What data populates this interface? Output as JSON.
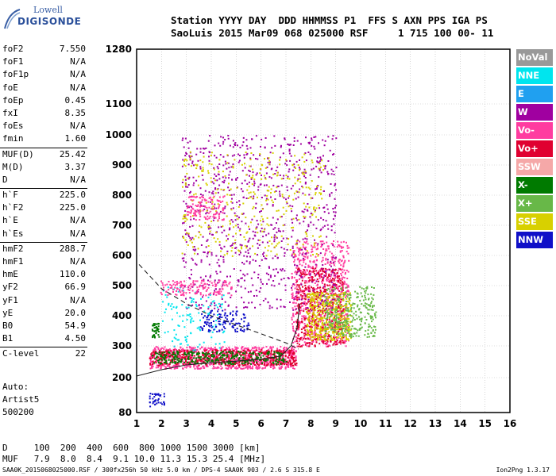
{
  "logo": {
    "line1": "Lowell",
    "line2": "DIGISONDE"
  },
  "header": {
    "line1": "Station YYYY DAY  DDD HHMMSS P1  FFS S AXN PPS IGA PS",
    "line2": "SaoLuis 2015 Mar09 068 025000 RSF     1 715 100 00- 11"
  },
  "params": {
    "group1": [
      {
        "k": "foF2",
        "v": "7.550"
      },
      {
        "k": "foF1",
        "v": "N/A"
      },
      {
        "k": "foF1p",
        "v": "N/A"
      },
      {
        "k": "foE",
        "v": "N/A"
      },
      {
        "k": "foEp",
        "v": "0.45"
      },
      {
        "k": "fxI",
        "v": "8.35"
      },
      {
        "k": "foEs",
        "v": "N/A"
      },
      {
        "k": "fmin",
        "v": "1.60"
      }
    ],
    "group2": [
      {
        "k": "MUF(D)",
        "v": "25.42"
      },
      {
        "k": "M(D)",
        "v": "3.37"
      },
      {
        "k": "D",
        "v": "N/A"
      }
    ],
    "group3": [
      {
        "k": "h`F",
        "v": "225.0"
      },
      {
        "k": "h`F2",
        "v": "225.0"
      },
      {
        "k": "h`E",
        "v": "N/A"
      },
      {
        "k": "h`Es",
        "v": "N/A"
      }
    ],
    "group4": [
      {
        "k": "hmF2",
        "v": "288.7"
      },
      {
        "k": "hmF1",
        "v": "N/A"
      },
      {
        "k": "hmE",
        "v": "110.0"
      },
      {
        "k": "yF2",
        "v": "66.9"
      },
      {
        "k": "yF1",
        "v": "N/A"
      },
      {
        "k": "yE",
        "v": "20.0"
      },
      {
        "k": "B0",
        "v": "54.9"
      },
      {
        "k": "B1",
        "v": "4.50"
      }
    ],
    "group5": [
      {
        "k": "C-level",
        "v": "22"
      }
    ]
  },
  "auto": {
    "line1": "Auto:",
    "line2": "Artist5",
    "line3": "500200"
  },
  "dmuf": {
    "d_row": "D     100  200  400  600  800 1000 1500 3000 [km]",
    "muf_row": "MUF   7.9  8.0  8.4  9.1 10.0 11.3 15.3 25.4 [MHz]"
  },
  "footer": "SAA0K_2015068025000.RSF / 300fx256h 50 kHz 5.0 km / DPS-4 SAA0K 903 / 2.6 S 315.8 E",
  "version": "Ion2Png 1.3.17",
  "legend": [
    {
      "label": "NoVal",
      "color": "#999999"
    },
    {
      "label": "NNE",
      "color": "#00e5ee"
    },
    {
      "label": "E",
      "color": "#20a0f0"
    },
    {
      "label": "W",
      "color": "#a000a0"
    },
    {
      "label": "Vo-",
      "color": "#ff3ca0"
    },
    {
      "label": "Vo+",
      "color": "#e00030"
    },
    {
      "label": "SSW",
      "color": "#f5a8a8"
    },
    {
      "label": "X-",
      "color": "#007a00"
    },
    {
      "label": "X+",
      "color": "#68b848"
    },
    {
      "label": "SSE",
      "color": "#d8d000"
    },
    {
      "label": "NNW",
      "color": "#1010c8"
    }
  ],
  "chart_data": {
    "type": "scatter",
    "title": "",
    "xlabel": "",
    "ylabel": "",
    "x_ticks": [
      1,
      2,
      3,
      4,
      5,
      6,
      7,
      8,
      9,
      10,
      11,
      12,
      13,
      14,
      15,
      16
    ],
    "y_ticks": [
      80,
      200,
      300,
      400,
      500,
      600,
      700,
      800,
      900,
      1000,
      1100,
      1280
    ],
    "xlim": [
      1,
      16
    ],
    "ylim": [
      80,
      1280
    ],
    "grid": true,
    "clusters": [
      {
        "series": "Vo-",
        "x": [
          1.5,
          7.4
        ],
        "y": [
          230,
          300
        ],
        "n": 900
      },
      {
        "series": "Vo+",
        "x": [
          1.5,
          7.4
        ],
        "y": [
          240,
          290
        ],
        "n": 500
      },
      {
        "series": "X-",
        "x": [
          1.6,
          7.0
        ],
        "y": [
          245,
          285
        ],
        "n": 300
      },
      {
        "series": "Vo-",
        "x": [
          7.2,
          9.5
        ],
        "y": [
          300,
          650
        ],
        "n": 700
      },
      {
        "series": "Vo+",
        "x": [
          7.4,
          9.3
        ],
        "y": [
          300,
          560
        ],
        "n": 500
      },
      {
        "series": "SSE",
        "x": [
          7.8,
          9.6
        ],
        "y": [
          320,
          480
        ],
        "n": 400
      },
      {
        "series": "X+",
        "x": [
          8.5,
          10.6
        ],
        "y": [
          330,
          500
        ],
        "n": 300
      },
      {
        "series": "W",
        "x": [
          2.8,
          9.0
        ],
        "y": [
          420,
          1000
        ],
        "n": 900
      },
      {
        "series": "SSE",
        "x": [
          2.8,
          8.5
        ],
        "y": [
          600,
          950
        ],
        "n": 350
      },
      {
        "series": "NNE",
        "x": [
          2.0,
          4.5
        ],
        "y": [
          280,
          500
        ],
        "n": 120
      },
      {
        "series": "NNW",
        "x": [
          3.5,
          5.5
        ],
        "y": [
          350,
          420
        ],
        "n": 120
      },
      {
        "series": "X-",
        "x": [
          1.6,
          1.9
        ],
        "y": [
          330,
          380
        ],
        "n": 40
      },
      {
        "series": "NNW",
        "x": [
          1.5,
          2.1
        ],
        "y": [
          100,
          150
        ],
        "n": 40
      },
      {
        "series": "Vo-",
        "x": [
          1.9,
          4.8
        ],
        "y": [
          470,
          520
        ],
        "n": 150
      },
      {
        "series": "Vo-",
        "x": [
          3.0,
          4.5
        ],
        "y": [
          720,
          800
        ],
        "n": 120
      }
    ],
    "trace_dashed": {
      "x": [
        1.1,
        2,
        3,
        4,
        5,
        6,
        7,
        7.5
      ],
      "y": [
        570,
        490,
        440,
        400,
        370,
        340,
        310,
        290
      ]
    },
    "trace_solid": {
      "x": [
        1.0,
        2,
        3,
        4,
        5,
        6,
        6.8,
        7.2,
        7.45,
        7.55
      ],
      "y": [
        205,
        225,
        240,
        247,
        252,
        258,
        268,
        300,
        360,
        440
      ]
    }
  }
}
